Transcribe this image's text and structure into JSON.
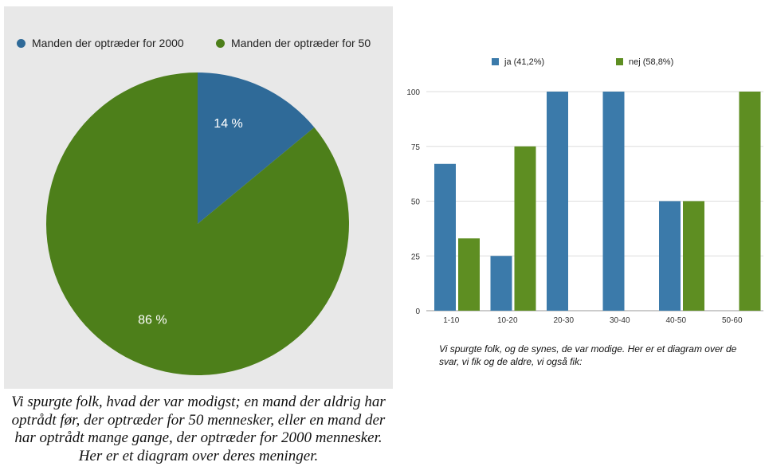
{
  "pie_legend": [
    {
      "label": "Manden der optræder for 2000",
      "color": "#2f6a98"
    },
    {
      "label": "Manden der optræder for 50",
      "color": "#4d7f1a"
    }
  ],
  "bar_legend": [
    {
      "label": "ja (41,2%)",
      "color": "#3b7aaa"
    },
    {
      "label": "nej (58,8%)",
      "color": "#5e8e22"
    }
  ],
  "pie_caption": "Vi spurgte folk, hvad der var modigst; en mand der aldrig har optrådt før, der optræder for 50 mennesker, eller en mand der har optrådt mange gange, der optræder for 2000 mennesker. Her er et diagram over deres meninger.",
  "bar_caption": "Vi spurgte folk, og de synes, de var modige. Her er et diagram over de svar, vi fik og de aldre, vi også fik:",
  "chart_data": [
    {
      "type": "pie",
      "categories": [
        "Manden der optræder for 2000",
        "Manden der optræder for 50"
      ],
      "values": [
        14,
        86
      ],
      "labels": [
        "14 %",
        "86 %"
      ],
      "colors": [
        "#2f6a98",
        "#4d7f1a"
      ],
      "legend": "top"
    },
    {
      "type": "bar",
      "categories": [
        "1-10",
        "10-20",
        "20-30",
        "30-40",
        "40-50",
        "50-60"
      ],
      "series": [
        {
          "name": "ja (41,2%)",
          "values": [
            67,
            25,
            100,
            100,
            50,
            0
          ],
          "color": "#3b7aaa"
        },
        {
          "name": "nej (58,8%)",
          "values": [
            33,
            75,
            0,
            0,
            50,
            100
          ],
          "color": "#5e8e22"
        }
      ],
      "yticks": [
        "0",
        "25",
        "50",
        "75",
        "100"
      ],
      "ylim": [
        0,
        100
      ],
      "grid": true,
      "legend": "top"
    }
  ]
}
